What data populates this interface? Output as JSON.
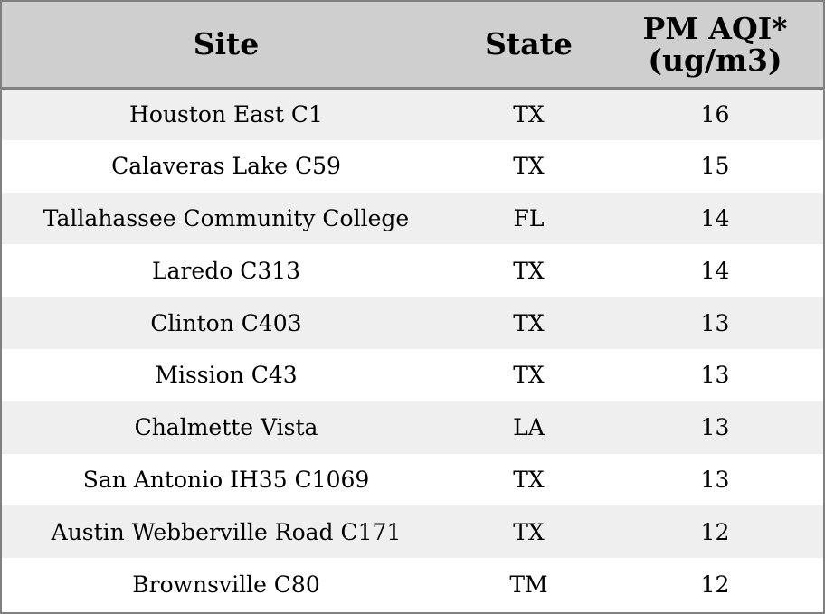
{
  "table": {
    "headers": {
      "site": "Site",
      "state": "State",
      "pm_line1": "PM AQI*",
      "pm_line2": "(ug/m3)"
    },
    "rows": [
      {
        "site": "Houston East C1",
        "state": "TX",
        "pm": "16"
      },
      {
        "site": "Calaveras Lake C59",
        "state": "TX",
        "pm": "15"
      },
      {
        "site": "Tallahassee Community College",
        "state": "FL",
        "pm": "14"
      },
      {
        "site": "Laredo C313",
        "state": "TX",
        "pm": "14"
      },
      {
        "site": "Clinton C403",
        "state": "TX",
        "pm": "13"
      },
      {
        "site": "Mission C43",
        "state": "TX",
        "pm": "13"
      },
      {
        "site": "Chalmette Vista",
        "state": "LA",
        "pm": "13"
      },
      {
        "site": "San Antonio IH35 C1069",
        "state": "TX",
        "pm": "13"
      },
      {
        "site": "Austin Webberville Road C171",
        "state": "TX",
        "pm": "12"
      },
      {
        "site": "Brownsville C80",
        "state": "TM",
        "pm": "12"
      }
    ]
  }
}
